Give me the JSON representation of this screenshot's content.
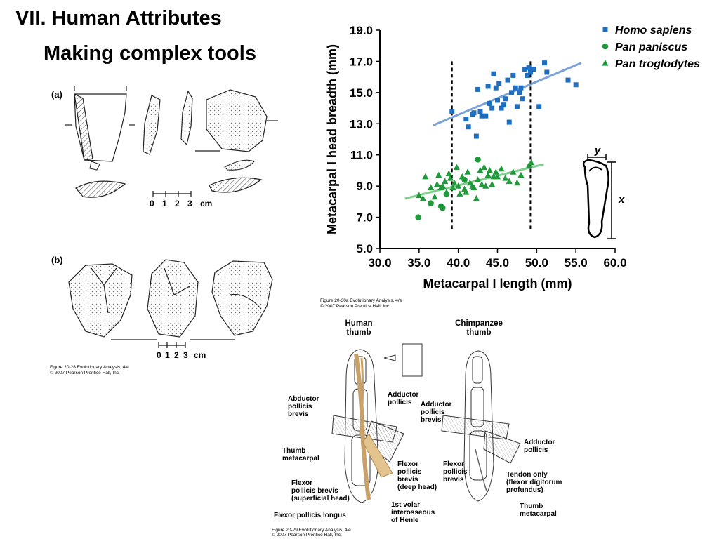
{
  "slide": {
    "title": "VII. Human Attributes",
    "subtitle": "Making complex tools"
  },
  "tools_figure": {
    "panel_a": "(a)",
    "panel_b": "(b)",
    "scale_a": [
      "0",
      "1",
      "2",
      "3",
      "cm"
    ],
    "scale_b": [
      "0",
      "1",
      "2",
      "3",
      "cm"
    ],
    "caption_line1": "Figure 20-28  Evolutionary Analysis, 4/e",
    "caption_line2": "© 2007 Pearson Prentice Hall, Inc."
  },
  "chart_caption": {
    "line1": "Figure 20-30a  Evolutionary Analysis, 4/e",
    "line2": "© 2007 Pearson Prentice Hall, Inc."
  },
  "inset": {
    "x_label": "x",
    "y_label": "y"
  },
  "chart_data": {
    "type": "scatter",
    "xlabel": "Metacarpal I length (mm)",
    "ylabel": "Metacarpal I head breadth (mm)",
    "xlim": [
      30,
      60
    ],
    "ylim": [
      5,
      19
    ],
    "x_ticks": [
      "30.0",
      "35.0",
      "40.0",
      "45.0",
      "50.0",
      "55.0",
      "60.0"
    ],
    "y_ticks": [
      "5.0",
      "7.0",
      "9.0",
      "11.0",
      "13.0",
      "15.0",
      "17.0",
      "19.0"
    ],
    "vertical_dashed_lines_x": [
      39.2,
      49.2
    ],
    "legend_position": "top-right",
    "series": [
      {
        "name": "Homo sapiens",
        "marker": "square",
        "color": "#1f6fc0",
        "points": [
          [
            39.2,
            13.8
          ],
          [
            41.0,
            13.3
          ],
          [
            41.3,
            12.8
          ],
          [
            41.8,
            13.6
          ],
          [
            42.0,
            13.7
          ],
          [
            42.3,
            12.2
          ],
          [
            42.5,
            15.2
          ],
          [
            42.8,
            13.8
          ],
          [
            43.0,
            13.5
          ],
          [
            43.5,
            13.5
          ],
          [
            43.8,
            15.4
          ],
          [
            44.0,
            14.3
          ],
          [
            44.3,
            14.0
          ],
          [
            44.5,
            16.2
          ],
          [
            44.8,
            15.3
          ],
          [
            45.0,
            14.5
          ],
          [
            45.2,
            15.6
          ],
          [
            45.5,
            14.0
          ],
          [
            45.8,
            14.2
          ],
          [
            46.0,
            14.6
          ],
          [
            46.3,
            15.8
          ],
          [
            46.5,
            13.1
          ],
          [
            46.8,
            15.0
          ],
          [
            47.0,
            16.1
          ],
          [
            47.3,
            15.3
          ],
          [
            47.5,
            14.1
          ],
          [
            47.8,
            15.0
          ],
          [
            48.0,
            15.3
          ],
          [
            48.2,
            14.6
          ],
          [
            48.5,
            16.5
          ],
          [
            48.8,
            16.1
          ],
          [
            49.0,
            16.6
          ],
          [
            49.2,
            16.3
          ],
          [
            49.6,
            16.5
          ],
          [
            50.3,
            14.1
          ],
          [
            51.0,
            16.9
          ],
          [
            51.3,
            16.3
          ],
          [
            54.0,
            15.8
          ],
          [
            55.0,
            15.5
          ]
        ]
      },
      {
        "name": "Pan paniscus",
        "marker": "circle",
        "color": "#1e9a3a",
        "points": [
          [
            34.9,
            7.0
          ],
          [
            36.5,
            7.9
          ],
          [
            37.8,
            7.7
          ],
          [
            38.0,
            7.6
          ],
          [
            38.5,
            8.5
          ],
          [
            40.8,
            9.4
          ],
          [
            42.5,
            10.7
          ]
        ]
      },
      {
        "name": "Pan troglodytes",
        "marker": "triangle",
        "color": "#1e9a3a",
        "points": [
          [
            35.0,
            8.4
          ],
          [
            35.5,
            8.2
          ],
          [
            35.8,
            9.6
          ],
          [
            36.5,
            8.9
          ],
          [
            37.0,
            8.3
          ],
          [
            37.3,
            9.1
          ],
          [
            37.5,
            9.7
          ],
          [
            37.8,
            8.9
          ],
          [
            38.0,
            9.0
          ],
          [
            38.3,
            9.3
          ],
          [
            38.5,
            8.6
          ],
          [
            38.8,
            9.8
          ],
          [
            39.0,
            9.5
          ],
          [
            39.3,
            8.9
          ],
          [
            39.5,
            9.2
          ],
          [
            39.8,
            10.2
          ],
          [
            40.0,
            9.0
          ],
          [
            40.2,
            8.5
          ],
          [
            40.5,
            9.6
          ],
          [
            40.8,
            8.8
          ],
          [
            41.0,
            8.6
          ],
          [
            41.2,
            9.9
          ],
          [
            41.5,
            9.2
          ],
          [
            41.8,
            9.0
          ],
          [
            42.0,
            8.9
          ],
          [
            42.3,
            8.2
          ],
          [
            42.5,
            9.4
          ],
          [
            42.8,
            10.0
          ],
          [
            43.0,
            9.1
          ],
          [
            43.3,
            10.2
          ],
          [
            43.5,
            9.0
          ],
          [
            43.8,
            9.7
          ],
          [
            44.0,
            10.0
          ],
          [
            44.3,
            9.1
          ],
          [
            44.5,
            9.6
          ],
          [
            44.8,
            9.9
          ],
          [
            45.0,
            9.6
          ],
          [
            45.5,
            10.1
          ],
          [
            46.0,
            9.5
          ],
          [
            46.5,
            9.3
          ],
          [
            47.0,
            9.9
          ],
          [
            47.5,
            9.2
          ],
          [
            48.0,
            9.7
          ],
          [
            49.0,
            10.3
          ],
          [
            49.3,
            10.5
          ]
        ]
      }
    ],
    "trend_lines": [
      {
        "series": "Homo sapiens",
        "color": "#7ba3d8",
        "points": [
          [
            36.8,
            12.9
          ],
          [
            55.7,
            16.9
          ]
        ]
      },
      {
        "series": "Pan",
        "color": "#7fcf8c",
        "points": [
          [
            33.2,
            8.2
          ],
          [
            50.9,
            10.4
          ]
        ]
      }
    ]
  },
  "thumb_figure": {
    "human_heading": "Human\nthumb",
    "chimp_heading": "Chimpanzee\nthumb",
    "labels": {
      "abductor_pollicis_brevis": "Abductor\npollicis\nbrevis",
      "thumb_metacarpal": "Thumb\nmetacarpal",
      "flexor_pollicis_brevis_superficial": "Flexor\npollicis brevis\n(superficial head)",
      "flexor_pollicis_longus": "Flexor pollicis longus",
      "adductor_pollicis_human": "Adductor\npollicis",
      "flexor_pollicis_brevis_deep": "Flexor\npollicis\nbrevis\n(deep head)",
      "first_volar": "1st volar\ninterosseous\nof Henle",
      "adductor_pollicis_brevis_chimp": "Adductor\npollicis\nbrevis",
      "adductor_pollicis_chimp": "Adductor\npollicis",
      "flexor_pollicis_brevis_chimp": "Flexor\npollicis\nbrevis",
      "tendon_only": "Tendon only\n(flexor digitorum\nprofundus)",
      "thumb_metacarpal_chimp": "Thumb\nmetacarpal"
    },
    "caption_line1": "Figure 20-29  Evolutionary Analysis, 4/e",
    "caption_line2": "© 2007 Pearson Prentice Hall, Inc."
  }
}
